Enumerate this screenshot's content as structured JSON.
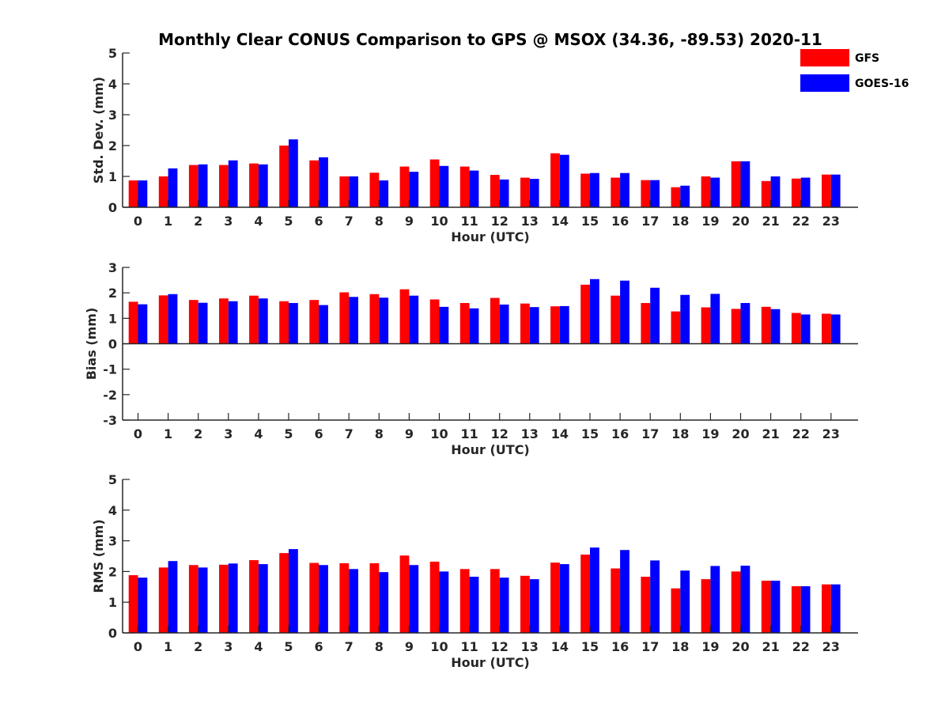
{
  "title": "Monthly Clear CONUS Comparison to GPS @ MSOX (34.36, -89.53) 2020-11",
  "legend": [
    {
      "name": "GFS",
      "color": "#ff0000"
    },
    {
      "name": "GOES-16",
      "color": "#0000ff"
    }
  ],
  "chart_data": [
    {
      "type": "bar",
      "ylabel": "Std. Dev. (mm)",
      "xlabel": "Hour (UTC)",
      "ylim": [
        0,
        5
      ],
      "yticks": [
        0,
        1,
        2,
        3,
        4,
        5
      ],
      "categories": [
        "0",
        "1",
        "2",
        "3",
        "4",
        "5",
        "6",
        "7",
        "8",
        "9",
        "10",
        "11",
        "12",
        "13",
        "14",
        "15",
        "16",
        "17",
        "18",
        "19",
        "20",
        "21",
        "22",
        "23"
      ],
      "series": [
        {
          "name": "GFS",
          "values": [
            0.87,
            1.0,
            1.37,
            1.37,
            1.42,
            2.0,
            1.52,
            1.0,
            1.12,
            1.32,
            1.55,
            1.32,
            1.05,
            0.96,
            1.75,
            1.09,
            0.96,
            0.88,
            0.65,
            1.0,
            1.49,
            0.85,
            0.93,
            1.06
          ]
        },
        {
          "name": "GOES-16",
          "values": [
            0.87,
            1.26,
            1.39,
            1.52,
            1.39,
            2.2,
            1.62,
            1.0,
            0.87,
            1.15,
            1.34,
            1.19,
            0.9,
            0.92,
            1.7,
            1.11,
            1.11,
            0.88,
            0.7,
            0.96,
            1.49,
            1.0,
            0.96,
            1.06
          ]
        }
      ]
    },
    {
      "type": "bar",
      "ylabel": "Bias (mm)",
      "xlabel": "Hour (UTC)",
      "ylim": [
        -3,
        3
      ],
      "yticks": [
        -3,
        -2,
        -1,
        0,
        1,
        2,
        3
      ],
      "categories": [
        "0",
        "1",
        "2",
        "3",
        "4",
        "5",
        "6",
        "7",
        "8",
        "9",
        "10",
        "11",
        "12",
        "13",
        "14",
        "15",
        "16",
        "17",
        "18",
        "19",
        "20",
        "21",
        "22",
        "23"
      ],
      "series": [
        {
          "name": "GFS",
          "values": [
            1.65,
            1.9,
            1.72,
            1.78,
            1.89,
            1.67,
            1.72,
            2.02,
            1.95,
            2.14,
            1.74,
            1.6,
            1.8,
            1.58,
            1.47,
            2.32,
            1.89,
            1.6,
            1.27,
            1.43,
            1.37,
            1.45,
            1.21,
            1.18
          ]
        },
        {
          "name": "GOES-16",
          "values": [
            1.55,
            1.95,
            1.61,
            1.67,
            1.78,
            1.6,
            1.52,
            1.84,
            1.81,
            1.89,
            1.45,
            1.39,
            1.54,
            1.44,
            1.48,
            2.54,
            2.48,
            2.2,
            1.92,
            1.96,
            1.6,
            1.36,
            1.15,
            1.15
          ]
        }
      ]
    },
    {
      "type": "bar",
      "ylabel": "RMS (mm)",
      "xlabel": "Hour (UTC)",
      "ylim": [
        0,
        5
      ],
      "yticks": [
        0,
        1,
        2,
        3,
        4,
        5
      ],
      "categories": [
        "0",
        "1",
        "2",
        "3",
        "4",
        "5",
        "6",
        "7",
        "8",
        "9",
        "10",
        "11",
        "12",
        "13",
        "14",
        "15",
        "16",
        "17",
        "18",
        "19",
        "20",
        "21",
        "22",
        "23"
      ],
      "series": [
        {
          "name": "GFS",
          "values": [
            1.88,
            2.13,
            2.21,
            2.22,
            2.37,
            2.6,
            2.28,
            2.27,
            2.27,
            2.52,
            2.32,
            2.08,
            2.08,
            1.86,
            2.29,
            2.55,
            2.1,
            1.83,
            1.45,
            1.75,
            2.0,
            1.7,
            1.52,
            1.58
          ]
        },
        {
          "name": "GOES-16",
          "values": [
            1.8,
            2.34,
            2.13,
            2.26,
            2.24,
            2.73,
            2.21,
            2.08,
            1.98,
            2.21,
            2.0,
            1.83,
            1.8,
            1.75,
            2.24,
            2.78,
            2.7,
            2.36,
            2.03,
            2.18,
            2.19,
            1.7,
            1.52,
            1.58
          ]
        }
      ]
    }
  ]
}
